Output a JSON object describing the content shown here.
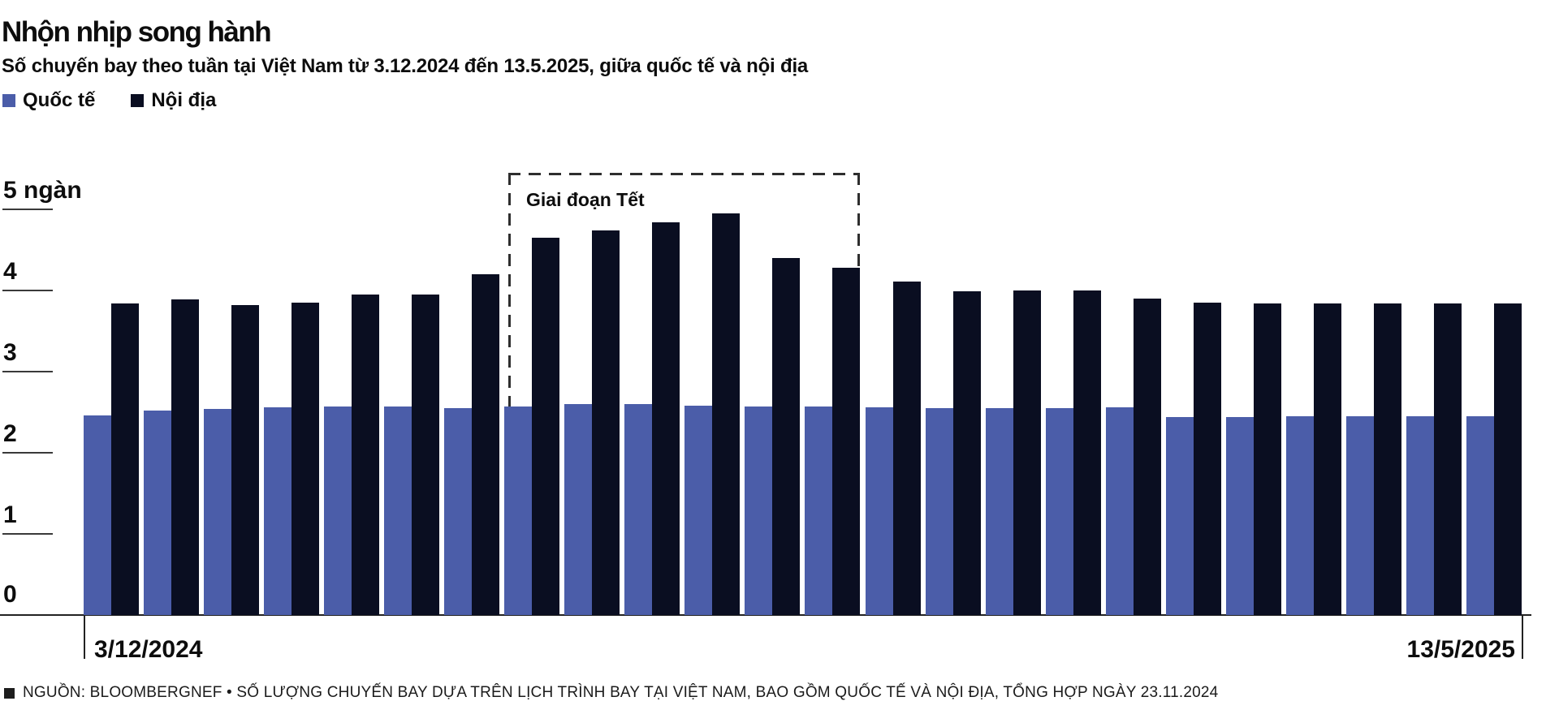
{
  "header": {
    "title": "Nhộn nhịp song hành",
    "subtitle": "Số chuyến bay theo tuần tại Việt Nam từ 3.12.2024 đến 13.5.2025, giữa quốc tế và nội địa"
  },
  "footer": {
    "source_note": "NGUỒN: BLOOMBERGNEF • SỐ LƯỢNG CHUYẾN BAY DỰA TRÊN LỊCH TRÌNH BAY TẠI VIỆT NAM, BAO GỒM QUỐC TẾ VÀ NỘI ĐỊA, TỔNG HỢP NGÀY 23.11.2024"
  },
  "chart_data": {
    "type": "bar",
    "title": "Nhộn nhịp song hành",
    "unit": "ngàn",
    "y_axis": {
      "tick_values": [
        0,
        1,
        2,
        3,
        4,
        5
      ],
      "tick_labels": [
        "0",
        "1",
        "2",
        "3",
        "4",
        "5 ngàn"
      ],
      "ylim": [
        0,
        5.45
      ],
      "grid": false
    },
    "x_axis": {
      "start_label": "3/12/2024",
      "end_label": "13/5/2025",
      "weeks": 24
    },
    "legend_position": "top-left",
    "series": [
      {
        "name": "Quốc tế",
        "color": "#4b5da9",
        "values": [
          2.46,
          2.52,
          2.54,
          2.56,
          2.57,
          2.57,
          2.55,
          2.57,
          2.6,
          2.6,
          2.58,
          2.57,
          2.57,
          2.56,
          2.55,
          2.55,
          2.55,
          2.56,
          2.44,
          2.44,
          2.45,
          2.45,
          2.45,
          2.45
        ]
      },
      {
        "name": "Nội địa",
        "color": "#0a0e21",
        "values": [
          3.84,
          3.89,
          3.82,
          3.85,
          3.95,
          3.95,
          4.2,
          4.65,
          4.74,
          4.84,
          4.95,
          4.4,
          4.28,
          4.11,
          3.99,
          4.0,
          4.0,
          3.9,
          3.85,
          3.84,
          3.84,
          3.84,
          3.84,
          3.84
        ]
      }
    ],
    "annotation": {
      "label": "Giai đoạn Tết",
      "start_week_index": 7,
      "end_week_index": 12
    }
  }
}
